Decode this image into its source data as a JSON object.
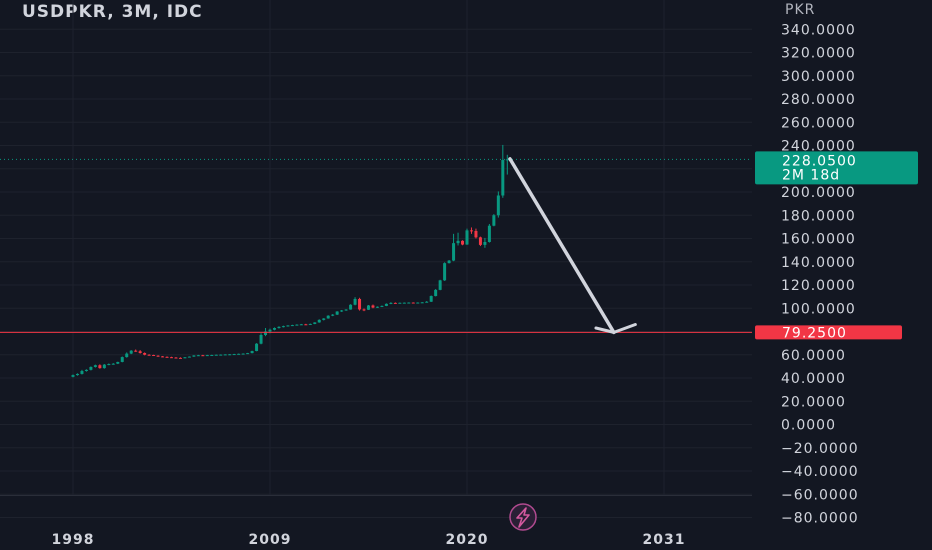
{
  "chart_data": {
    "type": "candlestick",
    "title": "USDPKR, 3M, IDC",
    "unit_label": "PKR",
    "ylim": [
      -86,
      350
    ],
    "y_ticks": [
      {
        "value": 340,
        "label": "340.0000"
      },
      {
        "value": 320,
        "label": "320.0000"
      },
      {
        "value": 300,
        "label": "300.0000"
      },
      {
        "value": 280,
        "label": "280.0000"
      },
      {
        "value": 260,
        "label": "260.0000"
      },
      {
        "value": 240,
        "label": "240.0000"
      },
      {
        "value": 200,
        "label": "200.0000"
      },
      {
        "value": 180,
        "label": "180.0000"
      },
      {
        "value": 160,
        "label": "160.0000"
      },
      {
        "value": 140,
        "label": "140.0000"
      },
      {
        "value": 120,
        "label": "120.0000"
      },
      {
        "value": 100,
        "label": "100.0000"
      },
      {
        "value": 60,
        "label": "60.0000"
      },
      {
        "value": 40,
        "label": "40.0000"
      },
      {
        "value": 20,
        "label": "20.0000"
      },
      {
        "value": 0,
        "label": "0.0000"
      },
      {
        "value": -20,
        "label": "−20.0000"
      },
      {
        "value": -40,
        "label": "−40.0000"
      },
      {
        "value": -60,
        "label": "−60.0000"
      },
      {
        "value": -80,
        "label": "−80.0000"
      }
    ],
    "x_ticks": [
      {
        "value": 1998,
        "label": "1998"
      },
      {
        "value": 2009,
        "label": "2009"
      },
      {
        "value": 2020,
        "label": "2020"
      },
      {
        "value": 2031,
        "label": "2031"
      }
    ],
    "xlim": [
      1994.3,
      2035.3
    ],
    "last_price": {
      "value": 228.05,
      "label": "228.0500",
      "countdown": "2M 18d",
      "color": "#089981"
    },
    "support_line": {
      "value": 79.25,
      "label": "79.2500",
      "color": "#f23645"
    },
    "up_color": "#089981",
    "down_color": "#f23645",
    "candles": [
      [
        1998.0,
        41.0,
        43.0,
        40.5,
        42.5
      ],
      [
        1998.25,
        42.5,
        44.0,
        42.0,
        43.5
      ],
      [
        1998.5,
        43.5,
        47.0,
        43.0,
        46.0
      ],
      [
        1998.75,
        46.0,
        47.5,
        45.5,
        47.0
      ],
      [
        1999.0,
        47.0,
        50.0,
        46.5,
        49.5
      ],
      [
        1999.25,
        49.5,
        51.5,
        49.0,
        51.0
      ],
      [
        1999.5,
        51.0,
        51.8,
        48.0,
        48.5
      ],
      [
        1999.75,
        48.5,
        52.0,
        48.0,
        51.5
      ],
      [
        2000.0,
        51.5,
        52.5,
        51.0,
        52.0
      ],
      [
        2000.25,
        52.0,
        52.8,
        51.5,
        52.3
      ],
      [
        2000.5,
        52.3,
        54.0,
        52.0,
        53.8
      ],
      [
        2000.75,
        53.8,
        58.5,
        53.5,
        58.0
      ],
      [
        2001.0,
        58.0,
        62.0,
        57.5,
        61.0
      ],
      [
        2001.25,
        61.0,
        64.0,
        60.5,
        63.5
      ],
      [
        2001.5,
        63.5,
        64.5,
        62.5,
        63.0
      ],
      [
        2001.75,
        63.0,
        64.0,
        61.0,
        61.5
      ],
      [
        2002.0,
        61.5,
        62.0,
        59.5,
        60.0
      ],
      [
        2002.25,
        60.0,
        60.5,
        59.5,
        59.8
      ],
      [
        2002.5,
        59.8,
        60.0,
        59.0,
        59.2
      ],
      [
        2002.75,
        59.2,
        59.6,
        58.3,
        58.6
      ],
      [
        2003.0,
        58.6,
        58.9,
        57.9,
        58.2
      ],
      [
        2003.25,
        58.2,
        58.6,
        57.6,
        57.9
      ],
      [
        2003.5,
        57.9,
        58.3,
        57.3,
        57.6
      ],
      [
        2003.75,
        57.6,
        58.0,
        57.0,
        57.3
      ],
      [
        2004.0,
        57.3,
        57.8,
        56.9,
        57.2
      ],
      [
        2004.25,
        57.2,
        58.0,
        57.0,
        57.8
      ],
      [
        2004.5,
        57.8,
        58.6,
        57.6,
        58.4
      ],
      [
        2004.75,
        58.4,
        59.6,
        58.2,
        59.4
      ],
      [
        2005.0,
        59.4,
        59.9,
        59.1,
        59.6
      ],
      [
        2005.25,
        59.6,
        59.9,
        59.2,
        59.5
      ],
      [
        2005.5,
        59.5,
        59.9,
        59.2,
        59.7
      ],
      [
        2005.75,
        59.7,
        60.0,
        59.4,
        59.8
      ],
      [
        2006.0,
        59.8,
        60.1,
        59.6,
        60.0
      ],
      [
        2006.25,
        60.0,
        60.3,
        59.8,
        60.1
      ],
      [
        2006.5,
        60.1,
        60.4,
        60.0,
        60.3
      ],
      [
        2006.75,
        60.3,
        60.6,
        60.1,
        60.4
      ],
      [
        2007.0,
        60.4,
        60.8,
        60.2,
        60.6
      ],
      [
        2007.25,
        60.6,
        61.0,
        60.4,
        60.8
      ],
      [
        2007.5,
        60.8,
        61.2,
        60.5,
        61.0
      ],
      [
        2007.75,
        61.0,
        61.6,
        60.8,
        61.4
      ],
      [
        2008.0,
        61.4,
        63.5,
        61.2,
        63.2
      ],
      [
        2008.25,
        63.2,
        70.0,
        63.0,
        69.5
      ],
      [
        2008.5,
        69.5,
        78.5,
        69.0,
        77.0
      ],
      [
        2008.75,
        77.0,
        83.0,
        76.0,
        80.0
      ],
      [
        2009.0,
        80.0,
        82.5,
        78.5,
        81.5
      ],
      [
        2009.25,
        81.5,
        83.5,
        81.0,
        83.0
      ],
      [
        2009.5,
        83.0,
        84.5,
        82.5,
        84.0
      ],
      [
        2009.75,
        84.0,
        85.0,
        83.5,
        84.6
      ],
      [
        2010.0,
        84.6,
        85.4,
        84.2,
        85.2
      ],
      [
        2010.25,
        85.2,
        85.8,
        84.8,
        85.5
      ],
      [
        2010.5,
        85.5,
        86.2,
        85.2,
        85.9
      ],
      [
        2010.75,
        85.9,
        86.5,
        85.6,
        86.2
      ],
      [
        2011.0,
        86.2,
        86.6,
        85.8,
        86.0
      ],
      [
        2011.25,
        86.0,
        86.8,
        85.8,
        86.5
      ],
      [
        2011.5,
        86.5,
        88.0,
        86.3,
        87.8
      ],
      [
        2011.75,
        87.8,
        90.5,
        87.5,
        90.0
      ],
      [
        2012.0,
        90.0,
        91.5,
        89.5,
        91.2
      ],
      [
        2012.25,
        91.2,
        94.0,
        91.0,
        93.6
      ],
      [
        2012.5,
        93.6,
        95.0,
        93.2,
        94.5
      ],
      [
        2012.75,
        94.5,
        97.5,
        94.2,
        97.2
      ],
      [
        2013.0,
        97.2,
        98.5,
        96.8,
        98.1
      ],
      [
        2013.25,
        98.1,
        99.2,
        97.8,
        98.9
      ],
      [
        2013.5,
        98.9,
        103.5,
        98.7,
        103.0
      ],
      [
        2013.75,
        103.0,
        109.5,
        102.5,
        108.0
      ],
      [
        2014.0,
        108.0,
        109.0,
        98.0,
        99.0
      ],
      [
        2014.25,
        99.0,
        99.8,
        97.5,
        98.7
      ],
      [
        2014.5,
        98.7,
        102.8,
        98.5,
        102.4
      ],
      [
        2014.75,
        102.4,
        103.2,
        100.0,
        100.6
      ],
      [
        2015.0,
        100.6,
        101.6,
        100.2,
        101.3
      ],
      [
        2015.25,
        101.3,
        102.4,
        101.0,
        102.0
      ],
      [
        2015.5,
        102.0,
        104.2,
        101.8,
        103.8
      ],
      [
        2015.75,
        103.8,
        105.2,
        103.5,
        104.6
      ],
      [
        2016.0,
        104.6,
        105.0,
        104.0,
        104.4
      ],
      [
        2016.25,
        104.4,
        104.9,
        104.2,
        104.7
      ],
      [
        2016.5,
        104.7,
        105.0,
        104.5,
        104.8
      ],
      [
        2016.75,
        104.8,
        105.1,
        104.6,
        104.9
      ],
      [
        2017.0,
        104.9,
        105.1,
        104.7,
        104.8
      ],
      [
        2017.25,
        104.8,
        105.1,
        104.6,
        104.9
      ],
      [
        2017.5,
        104.9,
        105.3,
        104.7,
        105.1
      ],
      [
        2017.75,
        105.1,
        106.2,
        104.9,
        105.6
      ],
      [
        2018.0,
        105.6,
        111.0,
        105.4,
        110.5
      ],
      [
        2018.25,
        110.5,
        116.5,
        110.2,
        115.8
      ],
      [
        2018.5,
        115.8,
        124.5,
        115.5,
        124.0
      ],
      [
        2018.75,
        124.0,
        139.5,
        123.5,
        138.8
      ],
      [
        2019.0,
        138.8,
        141.5,
        138.5,
        141.0
      ],
      [
        2019.25,
        141.0,
        164.0,
        140.5,
        156.0
      ],
      [
        2019.5,
        156.0,
        165.0,
        154.0,
        158.0
      ],
      [
        2019.75,
        158.0,
        158.5,
        154.2,
        154.8
      ],
      [
        2020.0,
        154.8,
        168.5,
        154.5,
        167.0
      ],
      [
        2020.25,
        167.0,
        169.5,
        164.0,
        166.5
      ],
      [
        2020.5,
        166.5,
        168.5,
        160.0,
        161.0
      ],
      [
        2020.75,
        161.0,
        161.6,
        153.5,
        154.5
      ],
      [
        2021.0,
        154.5,
        160.5,
        152.0,
        157.0
      ],
      [
        2021.25,
        157.0,
        172.5,
        156.5,
        171.0
      ],
      [
        2021.5,
        171.0,
        181.0,
        170.5,
        180.0
      ],
      [
        2021.75,
        180.0,
        200.5,
        178.0,
        197.0
      ],
      [
        2022.0,
        197.0,
        240.5,
        195.0,
        227.5
      ],
      [
        2022.25,
        227.5,
        232.0,
        215.0,
        228.05
      ]
    ],
    "projection_arrow": {
      "color": "#d1d4dc",
      "start": {
        "x": 2022.4,
        "y": 228.5
      },
      "tip": {
        "x": 2028.2,
        "y": 79.25
      },
      "wings": [
        {
          "x": 2027.2,
          "y": 83.0
        },
        {
          "x": 2029.4,
          "y": 86.0
        }
      ]
    }
  }
}
